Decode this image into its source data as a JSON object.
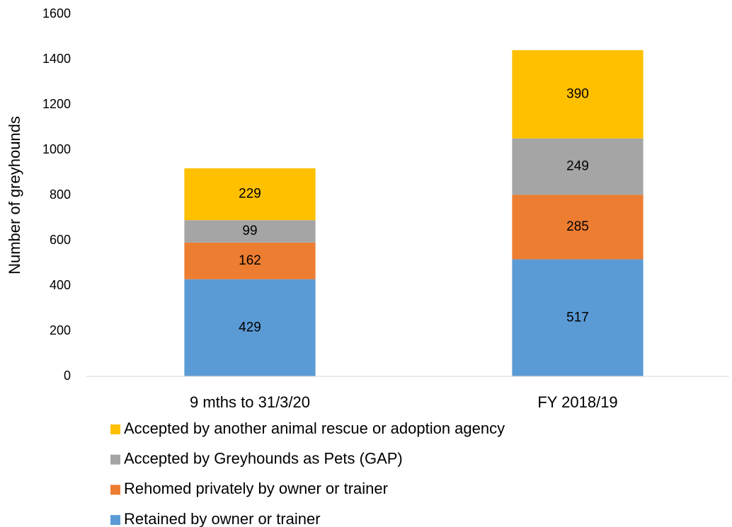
{
  "chart_data": {
    "type": "stacked_bar",
    "y_label": "Number of greyhounds",
    "categories": [
      "9 mths to 31/3/20",
      "FY 2018/19"
    ],
    "series": [
      {
        "name": "Retained by owner or trainer",
        "color": "#5b9bd5",
        "values": [
          429,
          517
        ]
      },
      {
        "name": "Rehomed privately by owner or trainer",
        "color": "#ed7d31",
        "values": [
          162,
          285
        ]
      },
      {
        "name": "Accepted by Greyhounds as Pets (GAP)",
        "color": "#a5a5a5",
        "values": [
          99,
          249
        ]
      },
      {
        "name": "Accepted by another animal rescue or adoption agency",
        "color": "#ffc000",
        "values": [
          229,
          390
        ]
      }
    ],
    "ylim": [
      0,
      1600
    ],
    "yticks": [
      0,
      200,
      400,
      600,
      800,
      1000,
      1200,
      1400,
      1600
    ],
    "grid": false,
    "legend": "bottom"
  }
}
